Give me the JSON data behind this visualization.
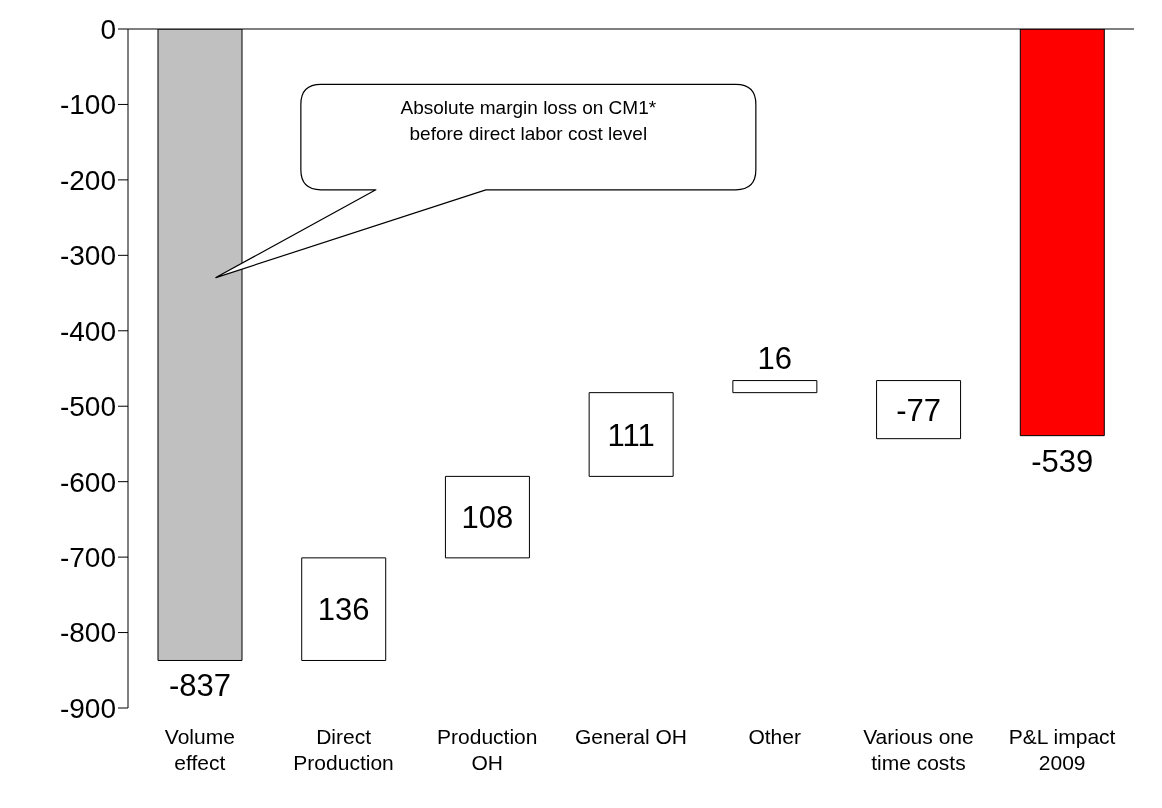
{
  "chart_data": {
    "type": "bar",
    "categories": [
      "Volume effect",
      "Direct Production",
      "Production OH",
      "General OH",
      "Other",
      "Various one time costs",
      "P&L impact 2009"
    ],
    "values": [
      -837,
      136,
      108,
      111,
      16,
      -77,
      -539
    ],
    "base": [
      0,
      -837,
      -701,
      -593,
      -482,
      -466,
      0
    ],
    "colors": [
      "#c0c0c0",
      "#ffffff",
      "#ffffff",
      "#ffffff",
      "#ffffff",
      "#ffffff",
      "#ff0000"
    ],
    "data_labels": true,
    "ylim": [
      -900,
      0
    ],
    "yticks": [
      -900,
      -800,
      -700,
      -600,
      -500,
      -400,
      -300,
      -200,
      -100,
      0
    ],
    "grid": false,
    "legend": false,
    "annotations": [
      "Absolute margin loss on CM1* before direct labor cost level"
    ]
  }
}
